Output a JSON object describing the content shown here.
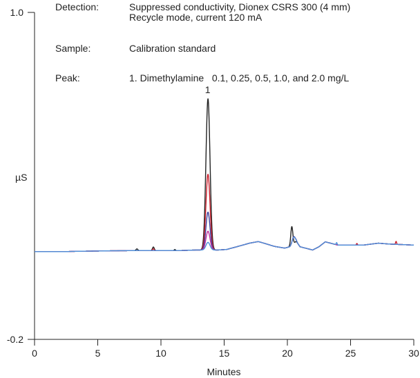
{
  "info": {
    "detection_label": "Detection:",
    "detection_line1": "Suppressed conductivity, Dionex CSRS 300 (4 mm)",
    "detection_line2": "Recycle mode, current 120 mA",
    "sample_label": "Sample:",
    "sample_value": "Calibration standard",
    "peak_label": "Peak:",
    "peak_value": "1. Dimethylamine   0.1, 0.25, 0.5, 1.0, and 2.0 mg/L"
  },
  "chart_data": {
    "type": "line",
    "xlabel": "Minutes",
    "ylabel": "µS",
    "xlim": [
      0,
      30
    ],
    "ylim": [
      -0.2,
      1.0
    ],
    "y_ticks": [
      "1.0",
      "-0.2"
    ],
    "x_ticks": [
      "0",
      "5",
      "10",
      "15",
      "20",
      "25",
      "30"
    ],
    "peak_annotation": {
      "label": "1",
      "x": 13.7
    },
    "colors": [
      "#222222",
      "#cc1f2c",
      "#3a3f9c",
      "#c02f9a",
      "#4a90d9"
    ],
    "baseline": [
      [
        0,
        0.122
      ],
      [
        2.5,
        0.122
      ],
      [
        3.0,
        0.123
      ],
      [
        6.0,
        0.125
      ],
      [
        8.0,
        0.126
      ],
      [
        11.5,
        0.126
      ],
      [
        12.8,
        0.128
      ],
      [
        14.5,
        0.128
      ],
      [
        15.2,
        0.13
      ],
      [
        16.0,
        0.14
      ],
      [
        17.0,
        0.153
      ],
      [
        17.7,
        0.159
      ],
      [
        18.0,
        0.155
      ],
      [
        19.0,
        0.141
      ],
      [
        19.8,
        0.135
      ],
      [
        20.2,
        0.14
      ],
      [
        20.7,
        0.16
      ],
      [
        21.0,
        0.14
      ],
      [
        22.0,
        0.128
      ],
      [
        22.5,
        0.14
      ],
      [
        23.0,
        0.158
      ],
      [
        24.0,
        0.146
      ],
      [
        26.0,
        0.146
      ],
      [
        27.2,
        0.153
      ],
      [
        28.0,
        0.15
      ],
      [
        30,
        0.146
      ]
    ],
    "series": [
      {
        "concentration_mg_per_L": 2.0,
        "peaks": [
          {
            "center": 13.72,
            "height": 0.555,
            "width": 0.16
          },
          {
            "center": 20.35,
            "height": 0.068,
            "width": 0.08
          },
          {
            "center": 9.4,
            "height": 0.013,
            "width": 0.07
          },
          {
            "center": 8.1,
            "height": 0.006,
            "width": 0.07
          },
          {
            "center": 11.1,
            "height": 0.004,
            "width": 0.05
          }
        ]
      },
      {
        "concentration_mg_per_L": 1.0,
        "peaks": [
          {
            "center": 13.72,
            "height": 0.278,
            "width": 0.16
          },
          {
            "center": 20.5,
            "height": 0.025,
            "width": 0.12
          },
          {
            "center": 9.4,
            "height": 0.006,
            "width": 0.07
          },
          {
            "center": 28.6,
            "height": 0.011,
            "width": 0.04
          },
          {
            "center": 25.5,
            "height": 0.006,
            "width": 0.04
          }
        ]
      },
      {
        "concentration_mg_per_L": 0.5,
        "peaks": [
          {
            "center": 13.72,
            "height": 0.139,
            "width": 0.16
          },
          {
            "center": 20.5,
            "height": 0.025,
            "width": 0.12
          }
        ]
      },
      {
        "concentration_mg_per_L": 0.25,
        "peaks": [
          {
            "center": 13.72,
            "height": 0.069,
            "width": 0.16
          },
          {
            "center": 20.5,
            "height": 0.024,
            "width": 0.12
          }
        ]
      },
      {
        "concentration_mg_per_L": 0.1,
        "peaks": [
          {
            "center": 13.72,
            "height": 0.028,
            "width": 0.16
          },
          {
            "center": 20.5,
            "height": 0.024,
            "width": 0.12
          },
          {
            "center": 23.9,
            "height": 0.008,
            "width": 0.04
          }
        ]
      }
    ]
  }
}
